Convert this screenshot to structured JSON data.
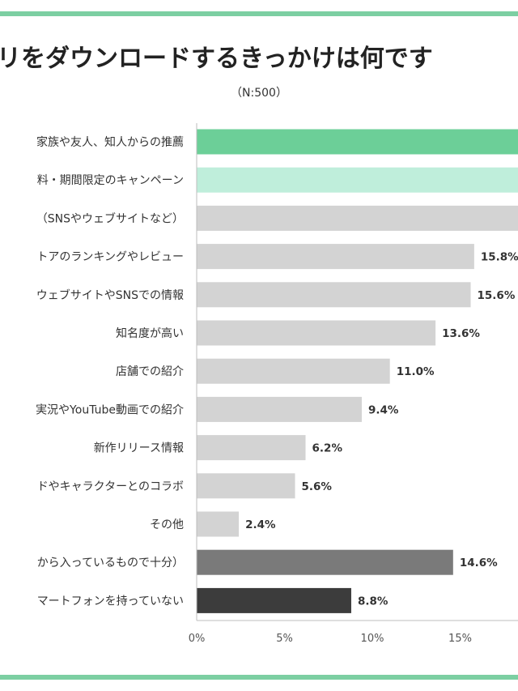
{
  "title": "リをダウンロードするきっかけは何です",
  "subtitle": "（N:500）",
  "chart_data": {
    "type": "bar",
    "orientation": "horizontal",
    "categories": [
      "家族や友人、知人からの推薦",
      "料・期間限定のキャンペーン",
      "（SNSやウェブサイトなど）",
      "トアのランキングやレビュー",
      "ウェブサイトやSNSでの情報",
      "知名度が高い",
      "店舗での紹介",
      "実況やYouTube動画での紹介",
      "新作リリース情報",
      "ドやキャラクターとのコラボ",
      "その他",
      "から入っているもので十分）",
      "マートフォンを持っていない"
    ],
    "values": [
      19.6,
      19.2,
      18.8,
      15.8,
      15.6,
      13.6,
      11.0,
      9.4,
      6.2,
      5.6,
      2.4,
      14.6,
      8.8
    ],
    "labels": [
      "",
      "",
      "",
      "15.8%",
      "15.6%",
      "13.6%",
      "11.0%",
      "9.4%",
      "6.2%",
      "5.6%",
      "2.4%",
      "14.6%",
      "8.8%"
    ],
    "colors": [
      "#6ccf98",
      "#bfeedb",
      "#d3d3d3",
      "#d3d3d3",
      "#d3d3d3",
      "#d3d3d3",
      "#d3d3d3",
      "#d3d3d3",
      "#d3d3d3",
      "#d3d3d3",
      "#d3d3d3",
      "#7a7a7a",
      "#3c3c3c"
    ],
    "xticks": [
      "0%",
      "5%",
      "10%",
      "15%"
    ],
    "xtick_values": [
      0,
      5,
      10,
      15
    ],
    "xlim": [
      0,
      20
    ],
    "grid": false
  }
}
